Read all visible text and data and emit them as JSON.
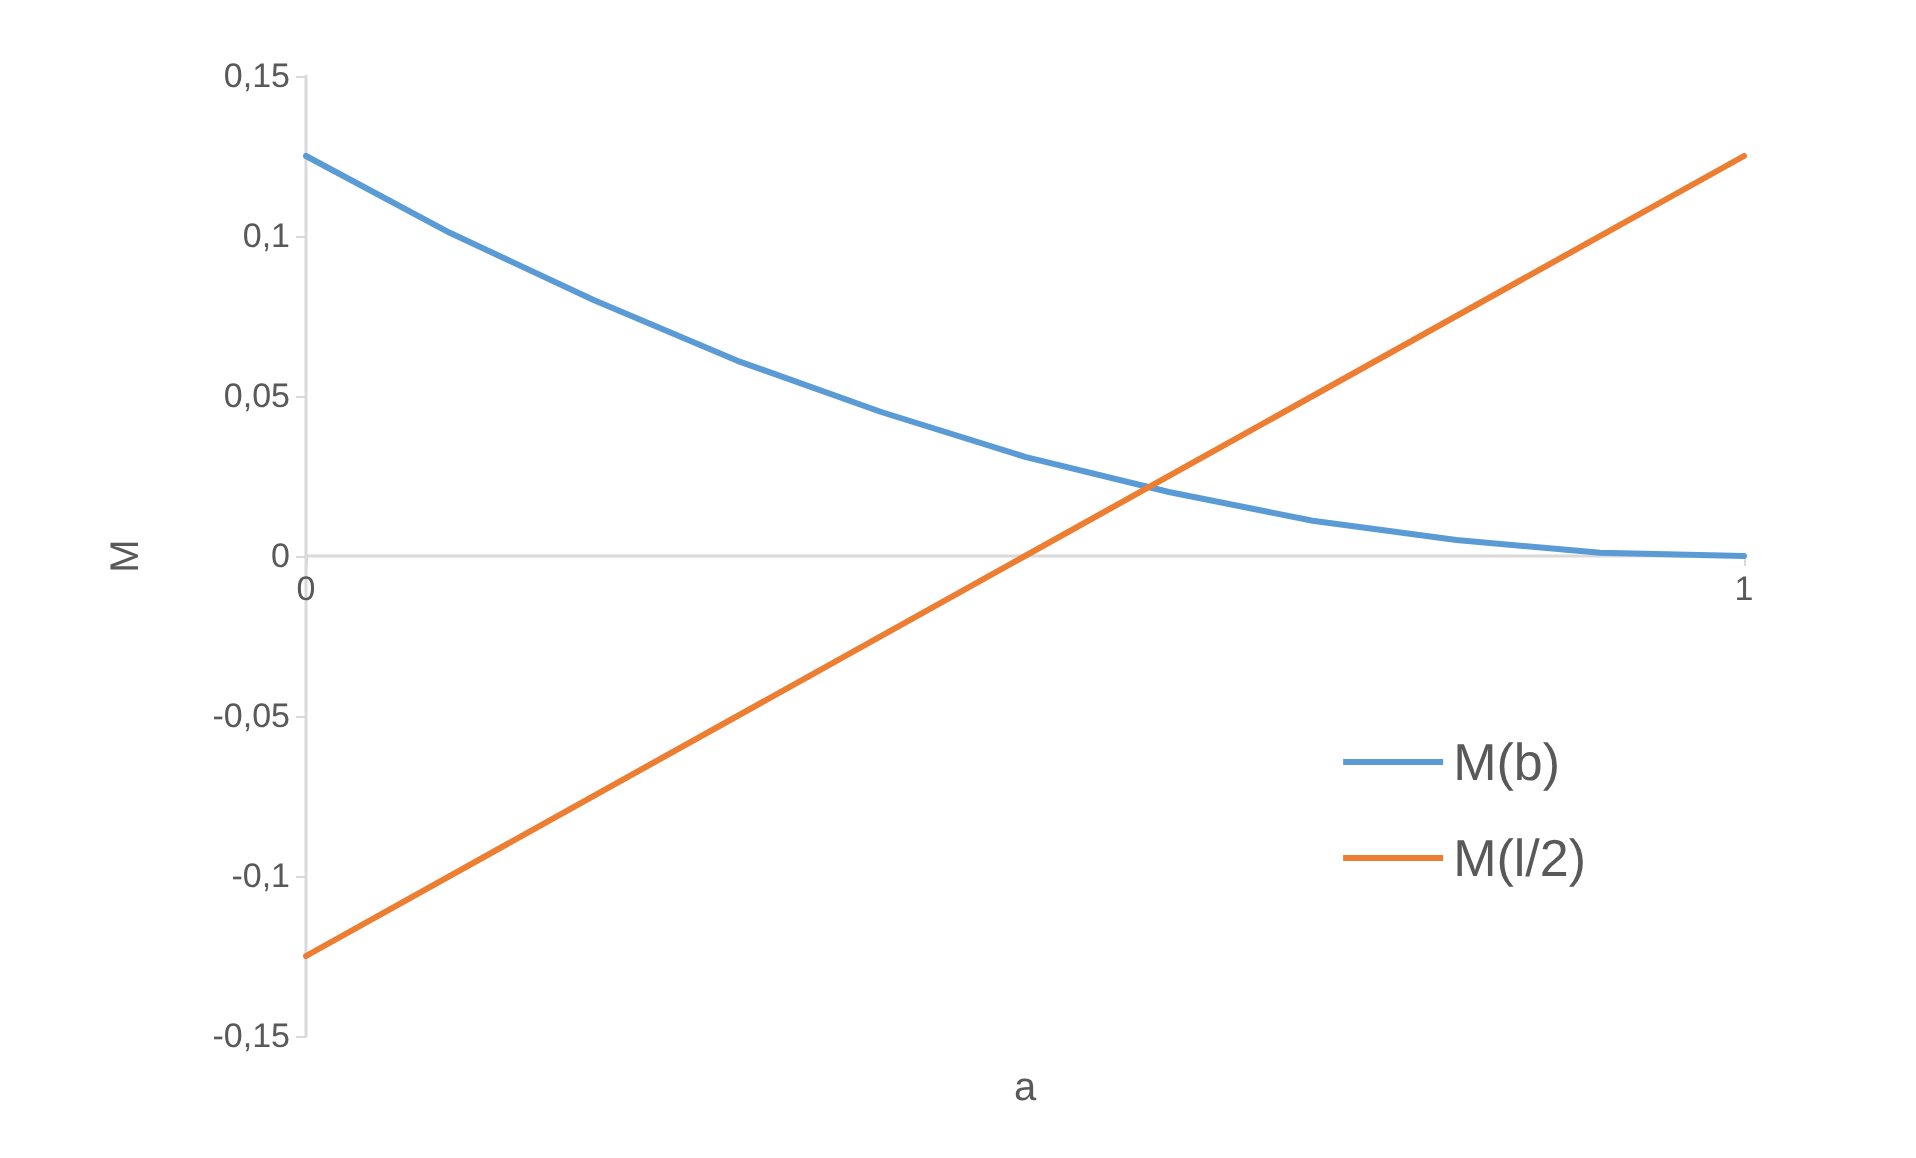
{
  "chart_data": {
    "type": "line",
    "xlabel": "a",
    "ylabel": "M",
    "x": [
      0,
      0.1,
      0.2,
      0.3,
      0.4,
      0.5,
      0.6,
      0.7,
      0.8,
      0.9,
      1
    ],
    "series": [
      {
        "name": "M(b)",
        "color": "#5b9bd5",
        "values": [
          0.125,
          0.101,
          0.08,
          0.061,
          0.045,
          0.031,
          0.02,
          0.011,
          0.005,
          0.001,
          0
        ]
      },
      {
        "name": "M(l/2)",
        "color": "#ed7d31",
        "x": [
          0,
          1
        ],
        "values": [
          -0.125,
          0.125
        ]
      }
    ],
    "xlim": [
      0,
      1
    ],
    "xticks": [
      0,
      1
    ],
    "ylim": [
      -0.15,
      0.15
    ],
    "yticks": [
      {
        "value": -0.15,
        "label": "-0,15"
      },
      {
        "value": -0.1,
        "label": "-0,1"
      },
      {
        "value": -0.05,
        "label": "-0,05"
      },
      {
        "value": 0,
        "label": "0"
      },
      {
        "value": 0.05,
        "label": "0,05"
      },
      {
        "value": 0.1,
        "label": "0,1"
      },
      {
        "value": 0.15,
        "label": "0,15"
      }
    ],
    "grid": false,
    "legend": "right",
    "marker": "none",
    "line_style": "solid"
  }
}
